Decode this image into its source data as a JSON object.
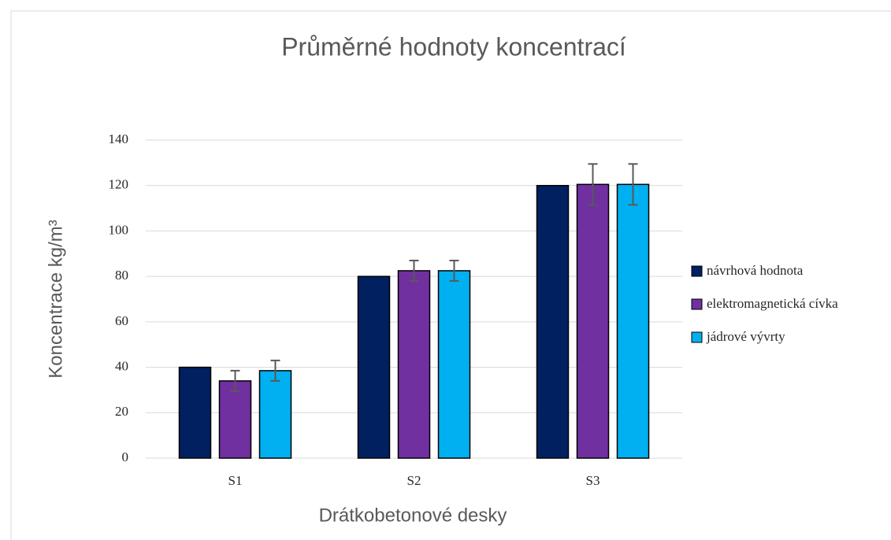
{
  "chart_data": {
    "type": "bar",
    "title": "Průměrné hodnoty koncentrací",
    "x_label": "Drátkobetonové desky",
    "y_label": "Koncentrace kg/m³",
    "categories": [
      "S1",
      "S2",
      "S3"
    ],
    "series": [
      {
        "name": "návrhová hodnota",
        "color": "#002060",
        "values": [
          40,
          80,
          120
        ]
      },
      {
        "name": "elektromagnetická cívka",
        "color": "#7030a0",
        "values": [
          34,
          82.5,
          120.5
        ],
        "errors": [
          4.5,
          4.5,
          9
        ]
      },
      {
        "name": "jádrové vývrty",
        "color": "#00b0f0",
        "values": [
          38.5,
          82.5,
          120.5
        ],
        "errors": [
          4.5,
          4.5,
          9
        ]
      }
    ],
    "error_color": "#595959",
    "ylim": [
      0,
      140
    ],
    "yticks": [
      0,
      20,
      40,
      60,
      80,
      100,
      120,
      140
    ],
    "grid": true,
    "legend": "right"
  }
}
